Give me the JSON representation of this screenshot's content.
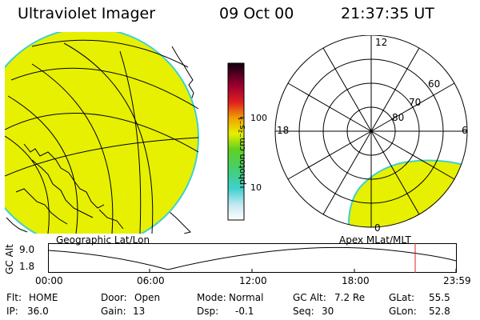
{
  "header": {
    "instrument": "Ultraviolet Imager",
    "date": "09 Oct 00",
    "time": "21:37:35 UT"
  },
  "colorbar": {
    "unit_label": "photon cm⁻²s⁻¹",
    "ticks": [
      "100",
      "10"
    ]
  },
  "polar_plot": {
    "mlt_labels": {
      "top": "12",
      "left": "18",
      "right": "6",
      "bottom": "0"
    },
    "lat_labels": [
      "60",
      "70",
      "80"
    ]
  },
  "panels": {
    "geo_label": "Geographic Lat/Lon",
    "apex_label": "Apex MLat/MLT"
  },
  "timeseries": {
    "ylabel": "GC Alt",
    "y_ticks": [
      "9.0",
      "1.8"
    ],
    "x_ticks": [
      "00:00",
      "06:00",
      "12:00",
      "18:00",
      "23:59"
    ]
  },
  "info": {
    "row1": [
      {
        "k": "Flt:",
        "v": "HOME"
      },
      {
        "k": "Door:",
        "v": "Open"
      },
      {
        "k": "Mode:",
        "v": "Normal"
      },
      {
        "k": "GC Alt:",
        "v": "7.2 Re"
      },
      {
        "k": "GLat:",
        "v": "55.5"
      }
    ],
    "row2": [
      {
        "k": "IP:",
        "v": "36.0"
      },
      {
        "k": "Gain:",
        "v": "13"
      },
      {
        "k": "Dsp:",
        "v": "-0.1"
      },
      {
        "k": "Seq:",
        "v": "30"
      },
      {
        "k": "GLon:",
        "v": "52.8"
      }
    ]
  },
  "colors": {
    "fill": "#e6f000",
    "edge": "#40d0d0"
  }
}
